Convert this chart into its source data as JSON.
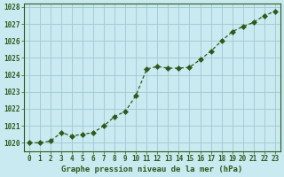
{
  "x": [
    0,
    1,
    2,
    3,
    4,
    5,
    6,
    7,
    8,
    9,
    10,
    11,
    12,
    13,
    14,
    15,
    16,
    17,
    18,
    19,
    20,
    21,
    22,
    23
  ],
  "y": [
    1020.0,
    1020.0,
    1020.1,
    1020.6,
    1020.4,
    1020.5,
    1020.6,
    1021.0,
    1021.55,
    1021.85,
    1022.8,
    1024.35,
    1024.5,
    1024.4,
    1024.4,
    1024.45,
    1024.9,
    1025.4,
    1026.0,
    1026.55,
    1026.85,
    1027.1,
    1027.5,
    1027.75
  ],
  "line_color": "#2d5a1b",
  "marker": "D",
  "marker_size": 3,
  "bg_color": "#c8eaf0",
  "grid_color": "#a0c8d0",
  "xlabel": "Graphe pression niveau de la mer (hPa)",
  "xlabel_color": "#2d5a1b",
  "tick_color": "#2d5a1b",
  "ylim_min": 1019.5,
  "ylim_max": 1028.2,
  "xlim_min": -0.5,
  "xlim_max": 23.5,
  "yticks": [
    1020,
    1021,
    1022,
    1023,
    1024,
    1025,
    1026,
    1027,
    1028
  ],
  "xticks": [
    0,
    1,
    2,
    3,
    4,
    5,
    6,
    7,
    8,
    9,
    10,
    11,
    12,
    13,
    14,
    15,
    16,
    17,
    18,
    19,
    20,
    21,
    22,
    23
  ]
}
